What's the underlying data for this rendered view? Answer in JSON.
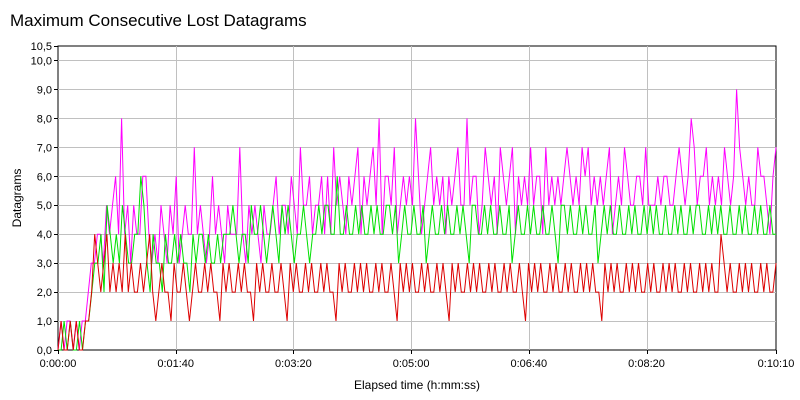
{
  "chart_data": {
    "type": "line",
    "title": "Maximum Consecutive Lost Datagrams",
    "xlabel": "Elapsed time (h:mm:ss)",
    "ylabel": "Datagrams",
    "x_ticks": [
      "0:00:00",
      "0:01:40",
      "0:03:20",
      "0:05:00",
      "0:06:40",
      "0:08:20",
      "0:10:10"
    ],
    "x_tick_seconds": [
      0,
      100,
      200,
      300,
      400,
      500,
      610
    ],
    "xlim_seconds": [
      0,
      610
    ],
    "y_ticks": [
      "0,0",
      "1,0",
      "2,0",
      "3,0",
      "4,0",
      "5,0",
      "6,0",
      "7,0",
      "8,0",
      "9,0",
      "10,0",
      "10,5"
    ],
    "y_tick_values": [
      0,
      1,
      2,
      3,
      4,
      5,
      6,
      7,
      8,
      9,
      10,
      10.5
    ],
    "ylim": [
      0,
      10.5
    ],
    "grid": true,
    "legend": "none",
    "series": [
      {
        "color": "#ff00ff",
        "values": [
          0,
          1,
          0,
          1,
          1,
          0,
          1,
          0,
          1,
          1,
          2,
          3,
          3,
          4,
          4,
          3,
          5,
          4,
          5,
          6,
          4,
          8,
          4,
          5,
          3,
          5,
          4,
          4,
          6,
          6,
          4,
          3,
          4,
          3,
          5,
          4,
          3,
          5,
          4,
          6,
          3,
          4,
          5,
          4,
          4,
          7,
          4,
          5,
          4,
          3,
          4,
          6,
          4,
          5,
          4,
          3,
          5,
          4,
          4,
          4,
          7,
          4,
          3,
          5,
          4,
          5,
          4,
          3,
          5,
          4,
          4,
          5,
          6,
          4,
          5,
          5,
          4,
          6,
          5,
          4,
          7,
          5,
          5,
          6,
          4,
          5,
          5,
          6,
          4,
          6,
          4,
          7,
          5,
          6,
          5,
          4,
          6,
          5,
          6,
          7,
          4,
          6,
          5,
          6,
          7,
          5,
          8,
          4,
          6,
          6,
          5,
          7,
          4,
          5,
          6,
          5,
          6,
          5,
          8,
          6,
          4,
          5,
          6,
          7,
          5,
          6,
          5,
          6,
          4,
          6,
          5,
          6,
          7,
          5,
          5,
          8,
          5,
          6,
          6,
          4,
          5,
          7,
          6,
          5,
          6,
          4,
          7,
          6,
          5,
          6,
          7,
          4,
          6,
          5,
          6,
          5,
          7,
          5,
          6,
          6,
          4,
          7,
          5,
          6,
          5,
          6,
          5,
          6,
          7,
          6,
          5,
          6,
          5,
          7,
          6,
          7,
          5,
          6,
          5,
          6,
          5,
          6,
          7,
          4,
          5,
          6,
          5,
          7,
          6,
          5,
          5,
          6,
          6,
          5,
          7,
          5,
          5,
          5,
          6,
          5,
          6,
          6,
          5,
          5,
          6,
          7,
          6,
          5,
          6,
          8,
          7,
          5,
          6,
          6,
          7,
          5,
          6,
          5,
          6,
          5,
          7,
          6,
          5,
          6,
          9,
          7,
          6,
          5,
          6,
          5,
          5,
          7,
          6,
          6,
          5,
          4,
          6,
          7
        ]
      },
      {
        "color": "#00e000",
        "values": [
          0,
          0,
          1,
          0,
          1,
          0,
          0,
          1,
          0,
          1,
          1,
          2,
          3,
          3,
          4,
          2,
          5,
          4,
          3,
          4,
          3,
          5,
          4,
          3,
          3,
          4,
          4,
          6,
          5,
          3,
          2,
          4,
          3,
          3,
          2,
          4,
          3,
          3,
          4,
          3,
          4,
          3,
          3,
          2,
          4,
          3,
          4,
          4,
          3,
          4,
          3,
          3,
          4,
          3,
          4,
          4,
          4,
          5,
          4,
          3,
          4,
          4,
          3,
          5,
          4,
          4,
          5,
          4,
          3,
          4,
          5,
          4,
          3,
          5,
          4,
          5,
          4,
          3,
          4,
          4,
          5,
          4,
          3,
          4,
          4,
          5,
          4,
          5,
          5,
          4,
          4,
          6,
          4,
          4,
          5,
          4,
          4,
          5,
          4,
          5,
          4,
          4,
          5,
          4,
          5,
          4,
          4,
          5,
          5,
          4,
          5,
          3,
          4,
          5,
          4,
          4,
          5,
          4,
          4,
          5,
          3,
          4,
          5,
          4,
          4,
          5,
          4,
          5,
          4,
          4,
          5,
          4,
          5,
          4,
          3,
          5,
          5,
          4,
          4,
          5,
          4,
          5,
          4,
          4,
          5,
          4,
          4,
          5,
          3,
          4,
          5,
          4,
          4,
          5,
          4,
          5,
          4,
          4,
          5,
          4,
          4,
          5,
          4,
          3,
          5,
          5,
          4,
          5,
          4,
          4,
          5,
          4,
          5,
          4,
          4,
          5,
          3,
          4,
          5,
          4,
          5,
          4,
          4,
          5,
          4,
          4,
          5,
          4,
          5,
          4,
          4,
          5,
          4,
          5,
          4,
          5,
          4,
          4,
          5,
          4,
          4,
          5,
          4,
          5,
          4,
          4,
          5,
          4,
          5,
          5,
          4,
          4,
          5,
          4,
          5,
          4,
          5,
          4,
          4,
          5,
          4,
          4,
          5,
          4,
          5,
          4,
          4,
          5,
          4,
          5,
          4,
          4,
          5,
          4,
          4
        ]
      },
      {
        "color": "#dd0000",
        "values": [
          0,
          1,
          0,
          0,
          1,
          0,
          1,
          0,
          0,
          1,
          1,
          2,
          4,
          3,
          2,
          3,
          4,
          2,
          3,
          2,
          3,
          2,
          4,
          2,
          3,
          2,
          2,
          3,
          2,
          3,
          4,
          2,
          1,
          2,
          3,
          2,
          2,
          1,
          3,
          2,
          2,
          3,
          2,
          1,
          2,
          3,
          2,
          2,
          3,
          2,
          3,
          2,
          2,
          1,
          3,
          2,
          3,
          2,
          2,
          3,
          2,
          3,
          2,
          2,
          1,
          3,
          2,
          3,
          2,
          2,
          3,
          2,
          2,
          3,
          2,
          1,
          3,
          2,
          3,
          2,
          2,
          3,
          2,
          3,
          2,
          2,
          3,
          2,
          3,
          2,
          2,
          1,
          3,
          2,
          3,
          2,
          2,
          3,
          2,
          3,
          2,
          3,
          2,
          2,
          3,
          2,
          3,
          2,
          2,
          3,
          2,
          1,
          3,
          2,
          3,
          2,
          3,
          2,
          2,
          3,
          2,
          3,
          2,
          2,
          3,
          2,
          3,
          2,
          1,
          3,
          2,
          3,
          2,
          2,
          3,
          2,
          3,
          2,
          3,
          2,
          2,
          3,
          2,
          3,
          2,
          2,
          3,
          2,
          3,
          2,
          2,
          3,
          2,
          1,
          3,
          2,
          3,
          2,
          3,
          2,
          2,
          3,
          2,
          3,
          2,
          2,
          3,
          2,
          3,
          2,
          2,
          3,
          2,
          3,
          2,
          3,
          2,
          2,
          1,
          3,
          2,
          3,
          2,
          3,
          2,
          2,
          3,
          2,
          3,
          2,
          3,
          2,
          2,
          3,
          2,
          3,
          2,
          2,
          3,
          2,
          3,
          2,
          3,
          2,
          2,
          3,
          2,
          3,
          2,
          2,
          3,
          2,
          3,
          2,
          3,
          2,
          2,
          4,
          3,
          2,
          3,
          2,
          2,
          3,
          2,
          3,
          2,
          3,
          2,
          2,
          3,
          2,
          3,
          2,
          2,
          3
        ]
      }
    ]
  }
}
